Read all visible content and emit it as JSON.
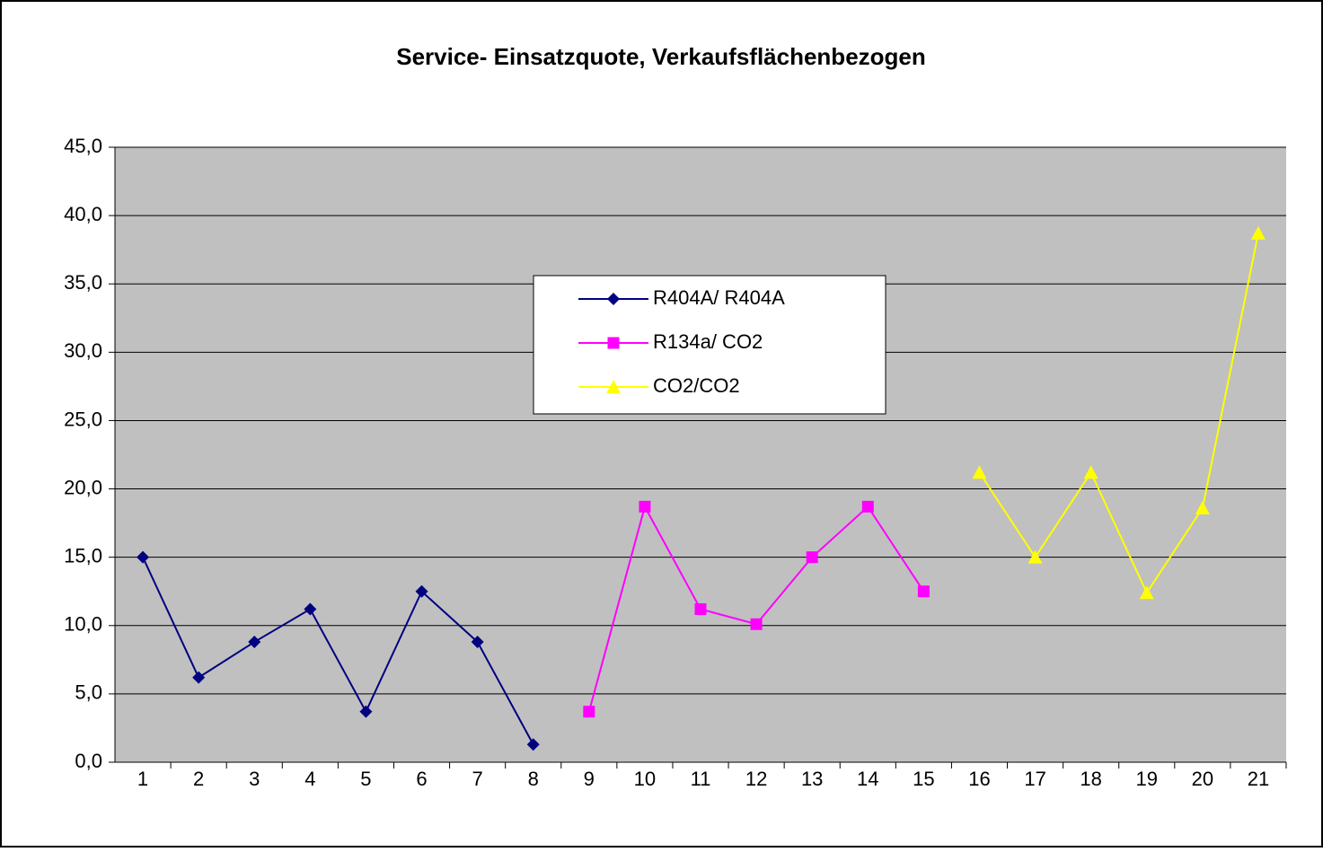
{
  "chart_data": {
    "type": "line",
    "title": "Service- Einsatzquote, Verkaufsflächenbezogen",
    "categories": [
      "1",
      "2",
      "3",
      "4",
      "5",
      "6",
      "7",
      "8",
      "9",
      "10",
      "11",
      "12",
      "13",
      "14",
      "15",
      "16",
      "17",
      "18",
      "19",
      "20",
      "21"
    ],
    "series": [
      {
        "name": "R404A/ R404A",
        "color": "#000080",
        "marker": "diamond",
        "values": [
          15.0,
          6.2,
          8.8,
          11.2,
          3.7,
          12.5,
          8.8,
          1.3,
          null,
          null,
          null,
          null,
          null,
          null,
          null,
          null,
          null,
          null,
          null,
          null,
          null
        ]
      },
      {
        "name": "R134a/ CO2",
        "color": "#ff00ff",
        "marker": "square",
        "values": [
          null,
          null,
          null,
          null,
          null,
          null,
          null,
          null,
          3.7,
          18.7,
          11.2,
          10.1,
          15.0,
          18.7,
          12.5,
          null,
          null,
          null,
          null,
          null,
          null
        ]
      },
      {
        "name": "CO2/CO2",
        "color": "#ffff00",
        "marker": "triangle",
        "values": [
          null,
          null,
          null,
          null,
          null,
          null,
          null,
          null,
          null,
          null,
          null,
          null,
          null,
          null,
          null,
          21.2,
          15.0,
          21.2,
          12.4,
          18.6,
          38.7
        ]
      }
    ],
    "ylim": [
      0,
      45
    ],
    "yticks": [
      {
        "value": 0,
        "label": "0,0"
      },
      {
        "value": 5,
        "label": "5,0"
      },
      {
        "value": 10,
        "label": "10,0"
      },
      {
        "value": 15,
        "label": "15,0"
      },
      {
        "value": 20,
        "label": "20,0"
      },
      {
        "value": 25,
        "label": "25,0"
      },
      {
        "value": 30,
        "label": "30,0"
      },
      {
        "value": 35,
        "label": "35,0"
      },
      {
        "value": 40,
        "label": "40,0"
      },
      {
        "value": 45,
        "label": "45,0"
      }
    ],
    "grid": true,
    "plot_background": "#c0c0c0"
  }
}
